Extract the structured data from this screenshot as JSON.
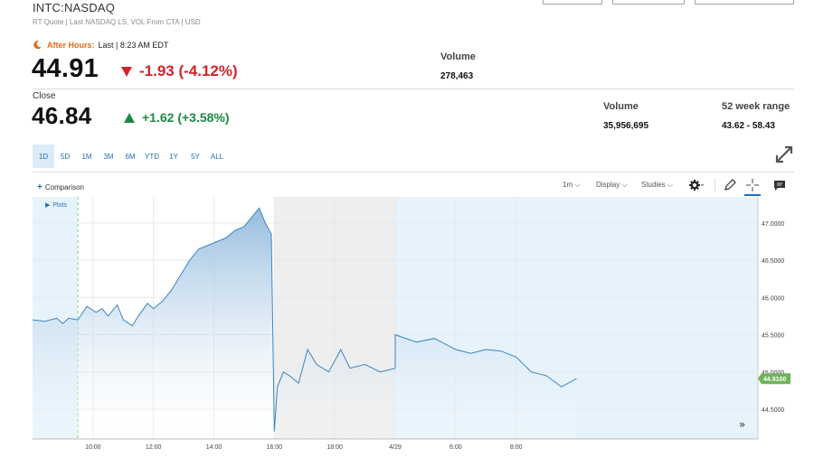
{
  "header": {
    "symbol": "INTC:NASDAQ",
    "subline": "RT Quote | Last NASDAQ LS, VOL From CTA | USD"
  },
  "after_hours": {
    "label": "After Hours:",
    "last_time": "Last | 8:23 AM EDT",
    "price": "44.91",
    "change": "-1.93 (-4.12%)",
    "volume_label": "Volume",
    "volume": "278,463"
  },
  "close": {
    "label": "Close",
    "price": "46.84",
    "change": "+1.62 (+3.58%)",
    "volume_label": "Volume",
    "volume": "35,956,695",
    "range_label": "52 week range",
    "range": "43.62 - 58.43"
  },
  "range_tabs": [
    "1D",
    "5D",
    "1M",
    "3M",
    "6M",
    "YTD",
    "1Y",
    "5Y",
    "ALL"
  ],
  "active_range": "1D",
  "toolbar": {
    "comparison": "Comparison",
    "interval": "1m",
    "display": "Display",
    "studies": "Studies",
    "plots": "Plots"
  },
  "colors": {
    "down": "#d3222a",
    "up": "#1b8a45",
    "accent": "#1f6fb4",
    "after_hours": "#e26a1a",
    "price_badge": "#6fb35a"
  },
  "chart_data": {
    "type": "area",
    "title": "",
    "xlabel": "",
    "ylabel": "",
    "x_ticks": [
      "10:00",
      "12:00",
      "14:00",
      "16:00",
      "18:00",
      "4/29",
      "6:00",
      "8:00"
    ],
    "y_ticks": [
      "47.0000",
      "46.5000",
      "46.0000",
      "45.5000",
      "45.0000",
      "44.5000"
    ],
    "ylim": [
      44.1,
      47.35
    ],
    "current_price_label": "44.9100",
    "grid": true,
    "series": [
      {
        "values": [
          [
            8.0,
            45.7
          ],
          [
            8.4,
            45.68
          ],
          [
            8.8,
            45.72
          ],
          [
            9.0,
            45.65
          ],
          [
            9.2,
            45.72
          ],
          [
            9.5,
            45.7
          ],
          [
            9.8,
            45.88
          ],
          [
            10.1,
            45.8
          ],
          [
            10.3,
            45.85
          ],
          [
            10.5,
            45.75
          ],
          [
            10.8,
            45.9
          ],
          [
            11.0,
            45.7
          ],
          [
            11.3,
            45.62
          ],
          [
            11.5,
            45.75
          ],
          [
            11.8,
            45.92
          ],
          [
            12.0,
            45.85
          ],
          [
            12.3,
            45.95
          ],
          [
            12.6,
            46.1
          ],
          [
            12.9,
            46.3
          ],
          [
            13.2,
            46.5
          ],
          [
            13.5,
            46.65
          ],
          [
            13.8,
            46.7
          ],
          [
            14.1,
            46.75
          ],
          [
            14.4,
            46.8
          ],
          [
            14.7,
            46.9
          ],
          [
            15.0,
            46.95
          ],
          [
            15.3,
            47.1
          ],
          [
            15.5,
            47.2
          ],
          [
            15.7,
            47.0
          ],
          [
            15.9,
            46.85
          ],
          [
            16.0,
            44.2
          ],
          [
            16.1,
            44.8
          ],
          [
            16.3,
            45.0
          ],
          [
            16.5,
            44.95
          ],
          [
            16.8,
            44.85
          ],
          [
            17.1,
            45.3
          ],
          [
            17.4,
            45.1
          ],
          [
            17.8,
            45.0
          ],
          [
            18.2,
            45.3
          ],
          [
            18.5,
            45.05
          ],
          [
            19.0,
            45.1
          ],
          [
            19.5,
            45.0
          ],
          [
            20.0,
            45.05
          ],
          [
            20.0,
            45.5
          ],
          [
            20.7,
            45.4
          ],
          [
            21.3,
            45.45
          ],
          [
            22.0,
            45.3
          ],
          [
            22.5,
            45.25
          ],
          [
            23.0,
            45.3
          ],
          [
            23.5,
            45.28
          ],
          [
            24.0,
            45.2
          ],
          [
            24.5,
            45.0
          ],
          [
            25.0,
            44.95
          ],
          [
            25.5,
            44.8
          ],
          [
            26.0,
            44.91
          ]
        ]
      }
    ]
  }
}
